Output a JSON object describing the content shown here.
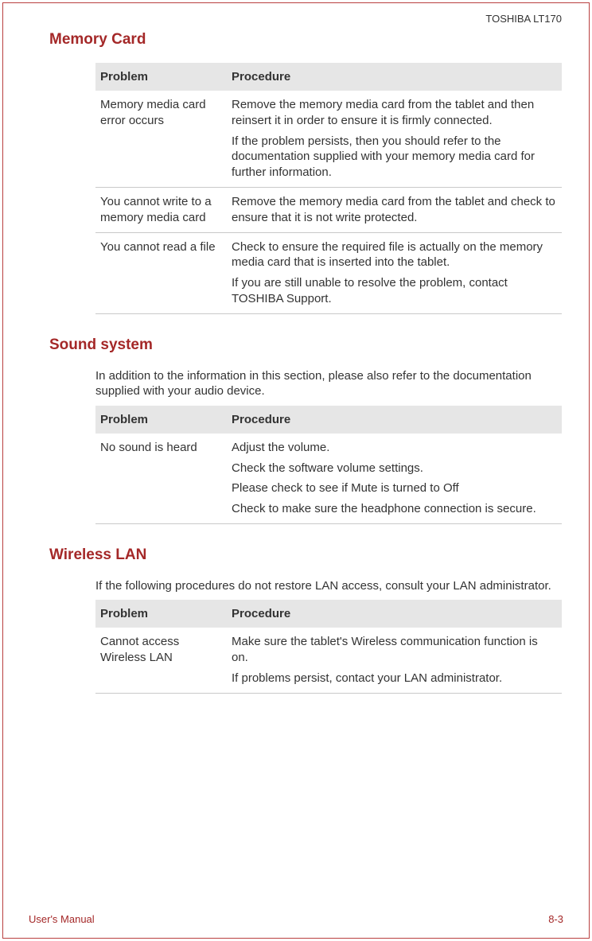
{
  "header": {
    "product": "TOSHIBA LT170"
  },
  "sections": [
    {
      "heading": "Memory Card",
      "intro": "",
      "table": {
        "col1": "Problem",
        "col2": "Procedure",
        "rows": [
          {
            "problem": "Memory media card error occurs",
            "procedures": [
              "Remove the memory media card from the tablet and then reinsert it in order to ensure it is firmly connected.",
              "If the problem persists, then you should refer to the documentation supplied with your memory media card for further information."
            ]
          },
          {
            "problem": "You cannot write to a memory media card",
            "procedures": [
              "Remove the memory media card from the tablet and check to ensure that it is not write protected."
            ]
          },
          {
            "problem": "You cannot read a file",
            "procedures": [
              "Check to ensure the required file is actually on the memory media card that is inserted into the tablet.",
              "If you are still unable to resolve the problem, contact TOSHIBA Support."
            ]
          }
        ]
      }
    },
    {
      "heading": "Sound system",
      "intro": "In addition to the information in this section, please also refer to the documentation supplied with your audio device.",
      "table": {
        "col1": "Problem",
        "col2": "Procedure",
        "rows": [
          {
            "problem": "No sound is heard",
            "procedures": [
              "Adjust the volume.",
              "Check the software volume settings.",
              "Please check to see if Mute is turned to Off",
              "Check to make sure the headphone connection is secure."
            ]
          }
        ]
      }
    },
    {
      "heading": "Wireless LAN",
      "intro": "If the following procedures do not restore LAN access, consult your LAN administrator.",
      "table": {
        "col1": "Problem",
        "col2": "Procedure",
        "rows": [
          {
            "problem": "Cannot access Wireless LAN",
            "procedures": [
              "Make sure the tablet's Wireless communication function is on.",
              "If problems persist, contact your LAN administrator."
            ]
          }
        ]
      }
    }
  ],
  "footer": {
    "left": "User's Manual",
    "right": "8-3"
  },
  "colors": {
    "accent": "#a42828",
    "border": "#b94040",
    "headerBg": "#e6e6e6",
    "text": "#333333",
    "rowBorder": "#c9c9c9"
  }
}
